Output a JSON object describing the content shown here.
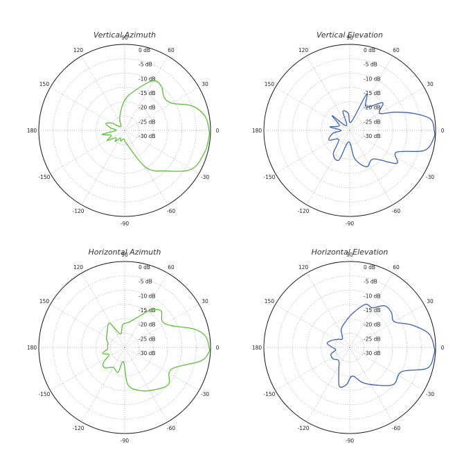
{
  "chart_data": [
    {
      "type": "polar",
      "title": "Vertical Azimuth",
      "color": "#5cbf3a",
      "radial_unit": "dB",
      "radial_range": [
        -30,
        0
      ],
      "radial_ticks": [
        "0 dB",
        "-5 dB",
        "-10 dB",
        "-15 dB",
        "-20 dB",
        "-25 dB",
        "-30 dB"
      ],
      "angle_ticks": [
        "90",
        "60",
        "30",
        "0",
        "-30",
        "-60",
        "-90",
        "-120",
        "-150",
        "180",
        "150",
        "120"
      ],
      "grid": true,
      "series": [
        {
          "angles_deg": [
            0,
            10,
            20,
            30,
            40,
            50,
            60,
            75,
            90,
            110,
            135,
            150,
            160,
            170,
            180,
            190,
            200,
            210,
            220,
            230,
            240,
            250,
            265,
            280,
            300,
            315,
            330,
            345,
            355
          ],
          "gain_db": [
            -0.5,
            -1.5,
            -5,
            -11,
            -12,
            -10,
            -10,
            -15.5,
            -19.5,
            -25,
            -28,
            -25,
            -23,
            -25,
            -27,
            -22,
            -25,
            -23,
            -26,
            -25,
            -27,
            -26,
            -27,
            -25,
            -15,
            -10,
            -3,
            -1,
            -0.5
          ]
        }
      ]
    },
    {
      "type": "polar",
      "title": "Vertical Elevation",
      "color": "#3a5fb0",
      "radial_unit": "dB",
      "radial_range": [
        -30,
        0
      ],
      "radial_ticks": [
        "0 dB",
        "-5 dB",
        "-10 dB",
        "-15 dB",
        "-20 dB",
        "-25 dB",
        "-30 dB"
      ],
      "angle_ticks": [
        "90",
        "60",
        "30",
        "0",
        "-30",
        "-60",
        "-90",
        "-120",
        "-150",
        "180",
        "150",
        "120"
      ],
      "grid": true,
      "series": [
        {
          "angles_deg": [
            0,
            8,
            15,
            22,
            30,
            40,
            55,
            65,
            80,
            95,
            110,
            125,
            140,
            155,
            170,
            180,
            190,
            205,
            220,
            235,
            250,
            265,
            280,
            295,
            310,
            325,
            335,
            345,
            355
          ],
          "gain_db": [
            -0.5,
            -1.5,
            -7,
            -13,
            -18,
            -15,
            -20,
            -16,
            -27,
            -24,
            -23,
            -28,
            -22,
            -26,
            -23,
            -27,
            -24,
            -22,
            -25,
            -20,
            -19,
            -26,
            -20,
            -16,
            -17,
            -10,
            -12,
            -3,
            -0.5
          ]
        }
      ]
    },
    {
      "type": "polar",
      "title": "Horizontal Azimuth",
      "color": "#5cbf3a",
      "radial_unit": "dB",
      "radial_range": [
        -30,
        0
      ],
      "radial_ticks": [
        "0 dB",
        "-5 dB",
        "-10 dB",
        "-15 dB",
        "-20 dB",
        "-25 dB",
        "-30 dB"
      ],
      "angle_ticks": [
        "90",
        "60",
        "30",
        "0",
        "-30",
        "-60",
        "-90",
        "-120",
        "-150",
        "180",
        "150",
        "120"
      ],
      "grid": true,
      "series": [
        {
          "angles_deg": [
            0,
            8,
            15,
            25,
            35,
            45,
            55,
            65,
            80,
            95,
            108,
            122,
            140,
            155,
            165,
            175,
            185,
            195,
            205,
            215,
            225,
            240,
            255,
            265,
            275,
            290,
            305,
            320,
            335,
            350,
            357
          ],
          "gain_db": [
            -0.5,
            -1.5,
            -5,
            -12,
            -14,
            -12,
            -14,
            -18,
            -21,
            -22,
            -25,
            -20,
            -22,
            -23,
            -24,
            -24,
            -24,
            -22,
            -24,
            -21,
            -20,
            -22,
            -21,
            -25,
            -17,
            -14,
            -12,
            -10,
            -12,
            -3,
            -0.5
          ]
        }
      ]
    },
    {
      "type": "polar",
      "title": "Horizontal Elevation",
      "color": "#3a5fb0",
      "radial_unit": "dB",
      "radial_range": [
        -30,
        0
      ],
      "radial_ticks": [
        "0 dB",
        "-5 dB",
        "-10 dB",
        "-15 dB",
        "-20 dB",
        "-25 dB",
        "-30 dB"
      ],
      "angle_ticks": [
        "90",
        "60",
        "30",
        "0",
        "-30",
        "-60",
        "-90",
        "-120",
        "-150",
        "180",
        "150",
        "120"
      ],
      "grid": true,
      "series": [
        {
          "angles_deg": [
            0,
            10,
            20,
            30,
            40,
            50,
            60,
            70,
            85,
            100,
            115,
            130,
            145,
            160,
            170,
            180,
            190,
            200,
            215,
            230,
            245,
            255,
            265,
            275,
            290,
            305,
            320,
            335,
            345,
            355
          ],
          "gain_db": [
            -0.5,
            -2,
            -7,
            -12,
            -11,
            -11,
            -14,
            -14,
            -18,
            -21,
            -23,
            -26,
            -25,
            -23,
            -22,
            -24,
            -25,
            -23,
            -23,
            -24,
            -21,
            -16,
            -17,
            -20,
            -17,
            -14,
            -10,
            -10,
            -2,
            -0.5
          ]
        }
      ]
    }
  ]
}
